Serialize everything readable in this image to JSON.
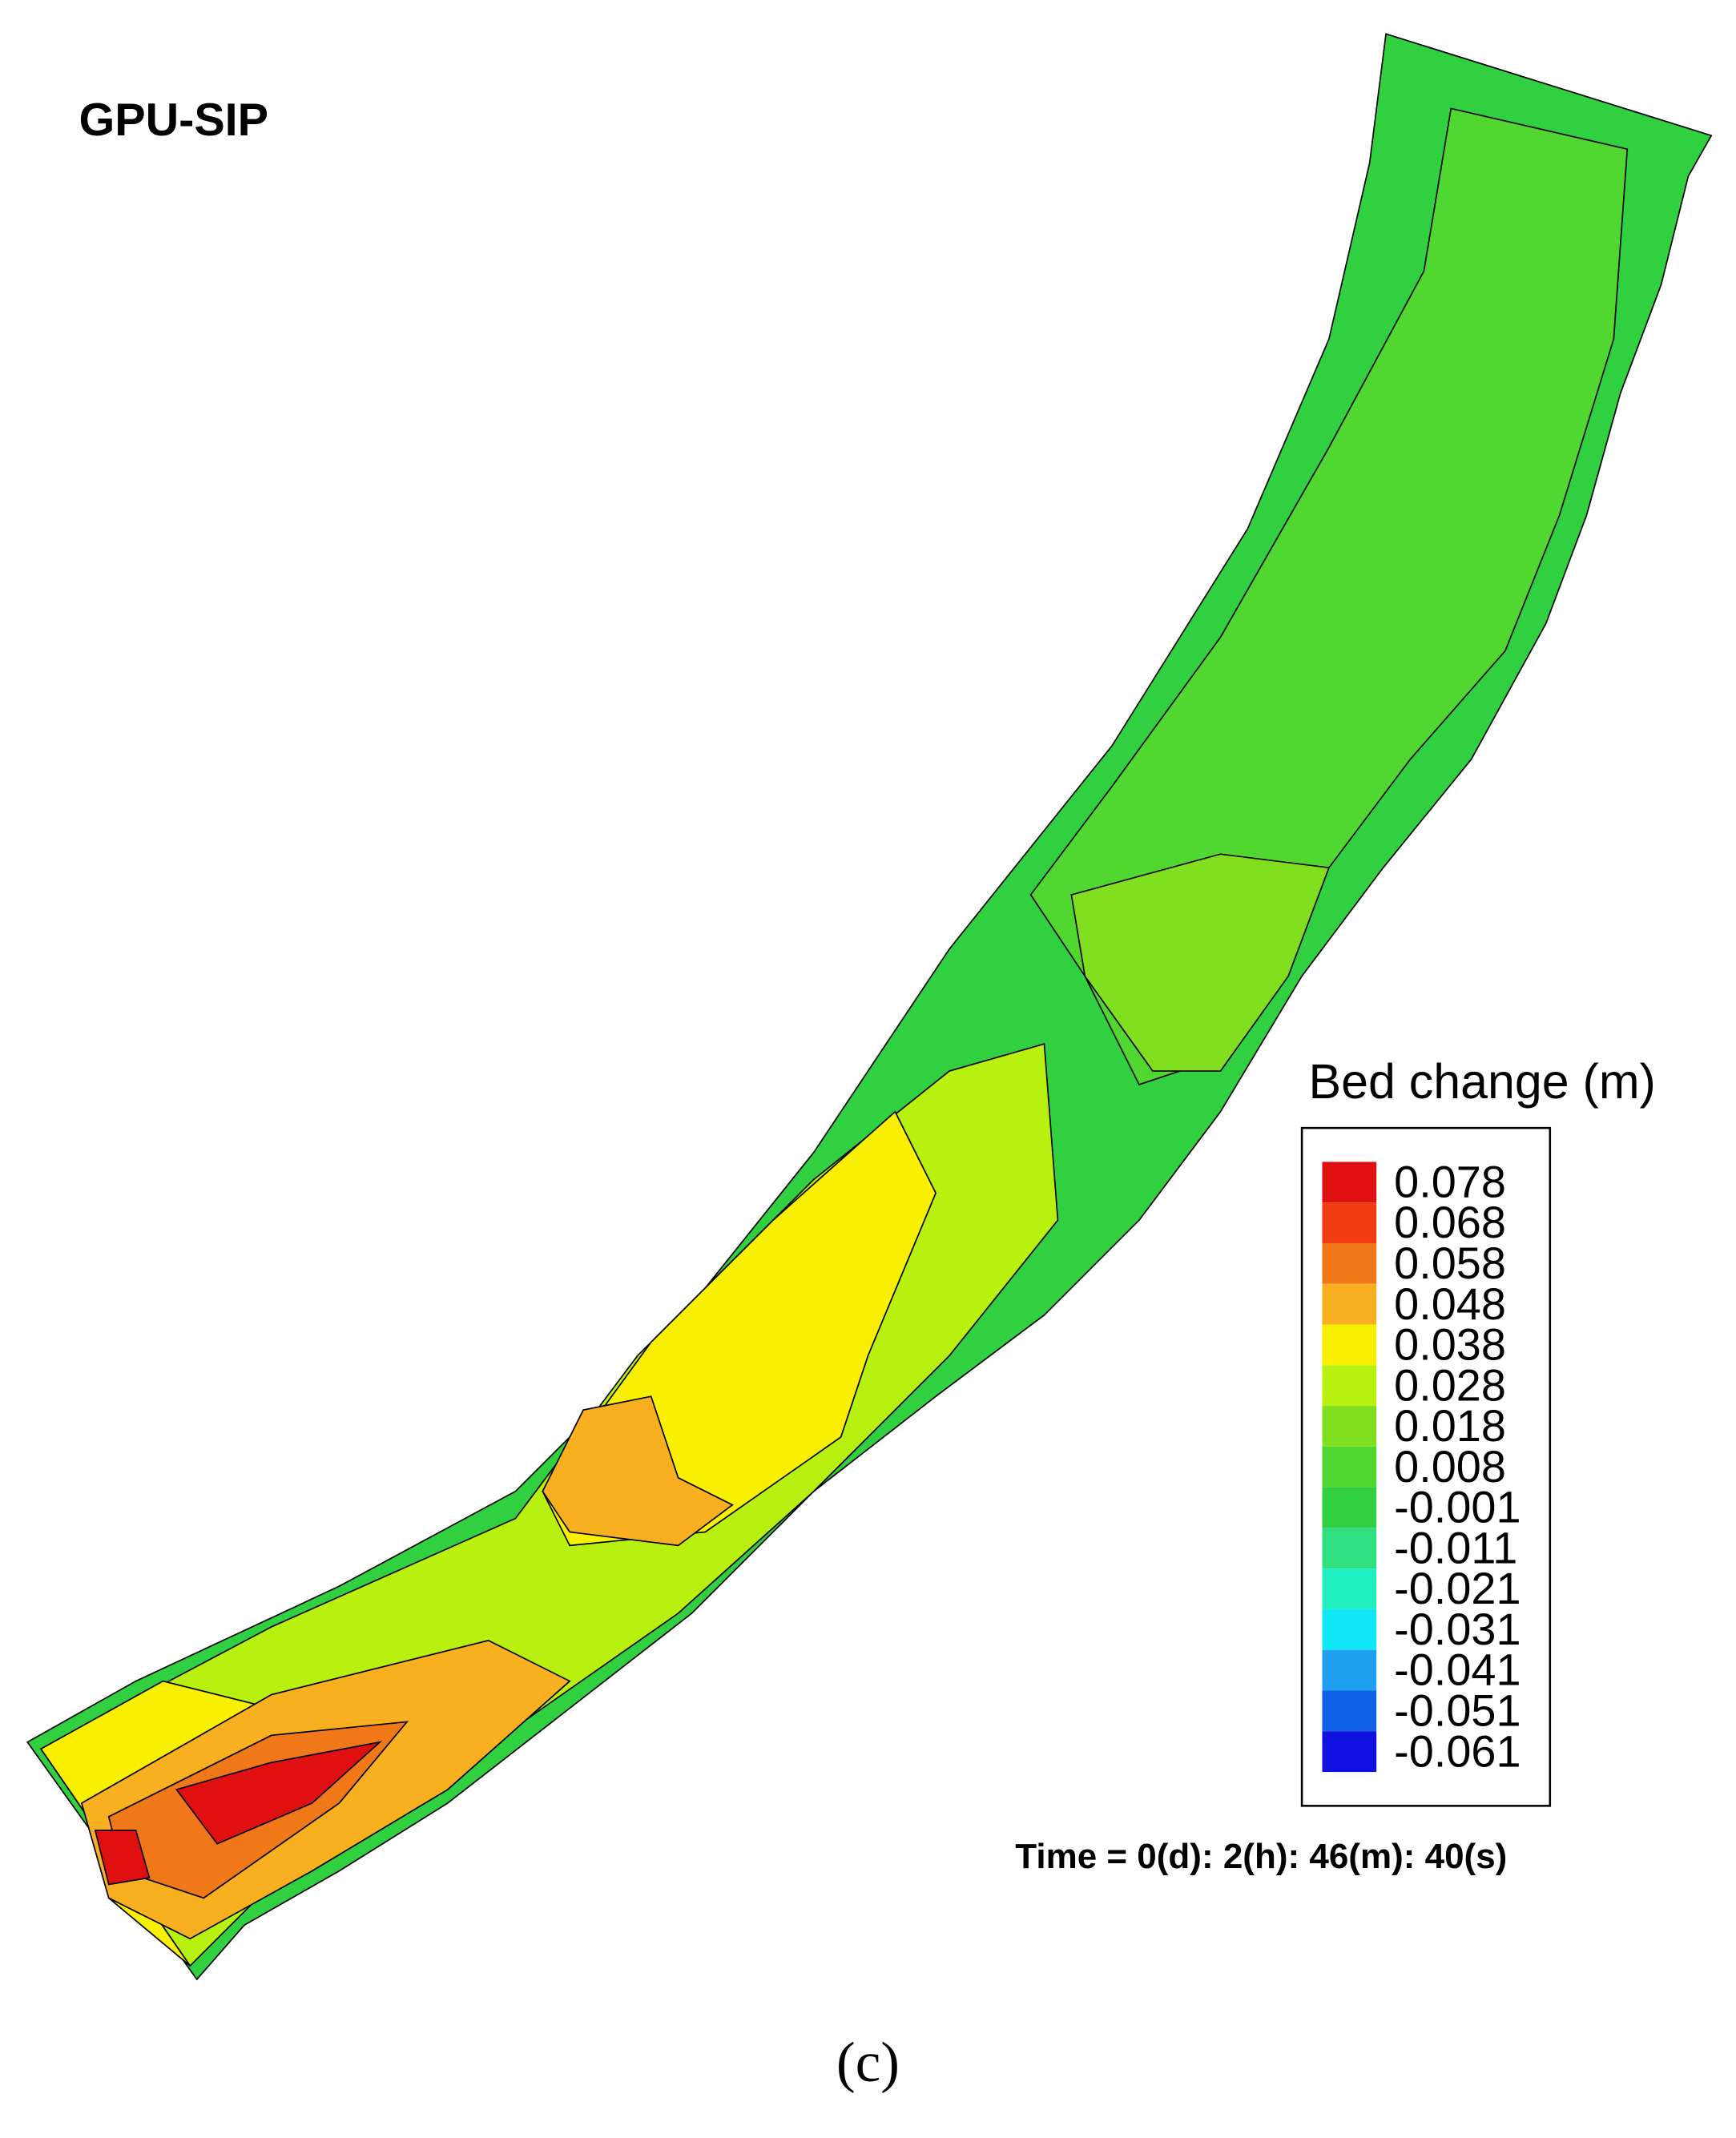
{
  "header": {
    "title": "GPU-SIP"
  },
  "legend": {
    "title": "Bed change (m)",
    "items": [
      {
        "label": "0.078",
        "color": "#e01010"
      },
      {
        "label": "0.068",
        "color": "#f03c10"
      },
      {
        "label": "0.058",
        "color": "#f07818"
      },
      {
        "label": "0.048",
        "color": "#f8b020"
      },
      {
        "label": "0.038",
        "color": "#f8f000"
      },
      {
        "label": "0.028",
        "color": "#b8f010"
      },
      {
        "label": "0.018",
        "color": "#80e020"
      },
      {
        "label": "0.008",
        "color": "#50d830"
      },
      {
        "label": "-0.001",
        "color": "#30d040"
      },
      {
        "label": "-0.011",
        "color": "#30e080"
      },
      {
        "label": "-0.021",
        "color": "#20f0c0"
      },
      {
        "label": "-0.031",
        "color": "#10e8f8"
      },
      {
        "label": "-0.041",
        "color": "#20a0f0"
      },
      {
        "label": "-0.051",
        "color": "#1060e8"
      },
      {
        "label": "-0.061",
        "color": "#1010e0"
      }
    ]
  },
  "time_label": "Time = 0(d): 2(h): 46(m): 40(s)",
  "caption": "(c)"
}
